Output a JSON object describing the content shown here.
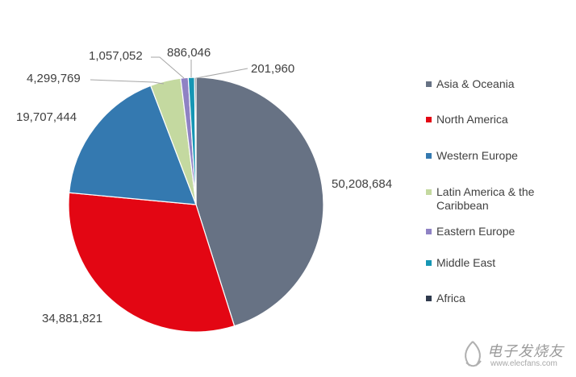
{
  "chart_data": {
    "type": "pie",
    "title": "",
    "slices": [
      {
        "name": "Asia & Oceania",
        "value": 50208684,
        "label": "50,208,684",
        "color": "#677284"
      },
      {
        "name": "North America",
        "value": 34881821,
        "label": "34,881,821",
        "color": "#e30613"
      },
      {
        "name": "Western Europe",
        "value": 19707444,
        "label": "19,707,444",
        "color": "#3479b0"
      },
      {
        "name": "Latin America & the Caribbean",
        "value": 4299769,
        "label": "4,299,769",
        "color": "#c4d9a0"
      },
      {
        "name": "Eastern Europe",
        "value": 1057052,
        "label": "1,057,052",
        "color": "#8f82c4"
      },
      {
        "name": "Middle East",
        "value": 886046,
        "label": "886,046",
        "color": "#1696b4"
      },
      {
        "name": "Africa",
        "value": 201960,
        "label": "201,960",
        "color": "#2f3a4d"
      }
    ],
    "legend_position": "right"
  },
  "watermark": {
    "text": "电子发烧友",
    "sub": "www.elecfans.com"
  }
}
